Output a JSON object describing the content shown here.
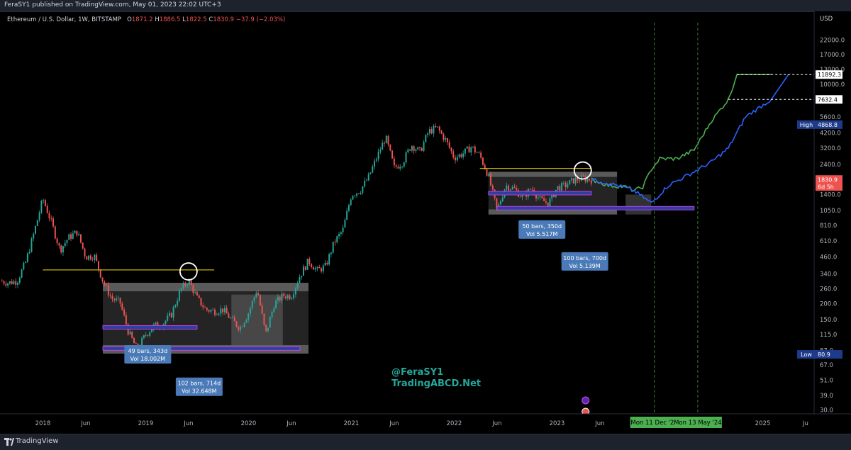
{
  "header": {
    "publish_line": "FeraSY1 published on TradingView.com, May 01, 2023 22:02 UTC+3"
  },
  "legend": {
    "symbol": "Ethereum / U.S. Dollar, 1W, BITSTAMP",
    "o_label": "O",
    "o_value": "1871.2",
    "h_label": "H",
    "h_value": "1886.5",
    "l_label": "L",
    "l_value": "1822.5",
    "c_label": "C",
    "c_value": "1830.9",
    "change": "−37.9 (−2.03%)"
  },
  "price_scale": {
    "currency": "USD"
  },
  "watermark": {
    "line1": "@FeraSY1",
    "line2": "TradingABCD.Net"
  },
  "footer": {
    "brand": "TradingView"
  },
  "colors": {
    "up": "#26a69a",
    "down": "#ef5350",
    "projection_green": "#4caf50",
    "projection_blue": "#2962ff",
    "resistance": "#c8b400",
    "box": "#808080",
    "date_marker": "#2e7d32",
    "annotation_bg": "#4a7ab8"
  },
  "chart_data": {
    "type": "candlestick",
    "symbol": "ETHUSD",
    "interval": "1W",
    "y_scale": "log",
    "ylim": [
      28,
      30000
    ],
    "x_range": [
      "2017-08",
      "2025-07"
    ],
    "y_ticks": [
      "22000.0",
      "17000.0",
      "13000.0",
      "10000.0",
      "5600.0",
      "4200.0",
      "3200.0",
      "2400.0",
      "1400.0",
      "1050.0",
      "810.0",
      "610.0",
      "460.0",
      "340.0",
      "260.0",
      "200.0",
      "150.0",
      "115.0",
      "87.0",
      "67.0",
      "51.0",
      "39.0",
      "30.0"
    ],
    "x_ticks": [
      {
        "label": "2018",
        "date": "2018-01"
      },
      {
        "label": "Jun",
        "date": "2018-06"
      },
      {
        "label": "2019",
        "date": "2019-01"
      },
      {
        "label": "Jun",
        "date": "2019-06"
      },
      {
        "label": "2020",
        "date": "2020-01"
      },
      {
        "label": "Jun",
        "date": "2020-06"
      },
      {
        "label": "2021",
        "date": "2021-01"
      },
      {
        "label": "Jun",
        "date": "2021-06"
      },
      {
        "label": "2022",
        "date": "2022-01"
      },
      {
        "label": "Jun",
        "date": "2022-06"
      },
      {
        "label": "2023",
        "date": "2023-01"
      },
      {
        "label": "Jun",
        "date": "2023-06"
      },
      {
        "label": "2025",
        "date": "2025-01"
      },
      {
        "label": "Ju",
        "date": "2025-06"
      }
    ],
    "price_path": [
      [
        "2017-08",
        300
      ],
      [
        "2017-09",
        290
      ],
      [
        "2017-10",
        300
      ],
      [
        "2017-11",
        420
      ],
      [
        "2017-12",
        720
      ],
      [
        "2018-01",
        1300
      ],
      [
        "2018-02",
        850
      ],
      [
        "2018-03",
        520
      ],
      [
        "2018-04",
        650
      ],
      [
        "2018-05",
        720
      ],
      [
        "2018-06",
        460
      ],
      [
        "2018-07",
        470
      ],
      [
        "2018-08",
        300
      ],
      [
        "2018-09",
        220
      ],
      [
        "2018-10",
        205
      ],
      [
        "2018-11",
        120
      ],
      [
        "2018-12",
        88
      ],
      [
        "2019-01",
        115
      ],
      [
        "2019-02",
        135
      ],
      [
        "2019-03",
        140
      ],
      [
        "2019-04",
        165
      ],
      [
        "2019-05",
        250
      ],
      [
        "2019-06",
        305
      ],
      [
        "2019-07",
        220
      ],
      [
        "2019-08",
        180
      ],
      [
        "2019-09",
        175
      ],
      [
        "2019-10",
        180
      ],
      [
        "2019-11",
        150
      ],
      [
        "2019-12",
        130
      ],
      [
        "2020-01",
        170
      ],
      [
        "2020-02",
        260
      ],
      [
        "2020-03",
        115
      ],
      [
        "2020-04",
        200
      ],
      [
        "2020-05",
        230
      ],
      [
        "2020-06",
        230
      ],
      [
        "2020-07",
        330
      ],
      [
        "2020-08",
        430
      ],
      [
        "2020-09",
        360
      ],
      [
        "2020-10",
        390
      ],
      [
        "2020-11",
        600
      ],
      [
        "2020-12",
        740
      ],
      [
        "2021-01",
        1400
      ],
      [
        "2021-02",
        1500
      ],
      [
        "2021-03",
        1900
      ],
      [
        "2021-04",
        2750
      ],
      [
        "2021-05",
        3900
      ],
      [
        "2021-06",
        2250
      ],
      [
        "2021-07",
        2500
      ],
      [
        "2021-08",
        3400
      ],
      [
        "2021-09",
        3000
      ],
      [
        "2021-10",
        4300
      ],
      [
        "2021-11",
        4600
      ],
      [
        "2021-12",
        3700
      ],
      [
        "2022-01",
        2700
      ],
      [
        "2022-02",
        2900
      ],
      [
        "2022-03",
        3280
      ],
      [
        "2022-04",
        2800
      ],
      [
        "2022-05",
        1950
      ],
      [
        "2022-06",
        1050
      ],
      [
        "2022-07",
        1650
      ],
      [
        "2022-08",
        1550
      ],
      [
        "2022-09",
        1330
      ],
      [
        "2022-10",
        1570
      ],
      [
        "2022-11",
        1280
      ],
      [
        "2022-12",
        1200
      ],
      [
        "2023-01",
        1580
      ],
      [
        "2023-02",
        1650
      ],
      [
        "2023-03",
        1820
      ],
      [
        "2023-04",
        1870
      ],
      [
        "2023-05",
        1830
      ]
    ],
    "projections": [
      {
        "name": "green",
        "points": [
          [
            "2023-05",
            1830
          ],
          [
            "2023-07",
            1650
          ],
          [
            "2023-09",
            1600
          ],
          [
            "2023-10",
            1500
          ],
          [
            "2023-11",
            1600
          ],
          [
            "2023-12",
            2200
          ],
          [
            "2024-01",
            2650
          ],
          [
            "2024-03",
            2650
          ],
          [
            "2024-05",
            3100
          ],
          [
            "2024-07",
            5200
          ],
          [
            "2024-09",
            7632.4
          ],
          [
            "2024-10",
            11892.3
          ],
          [
            "2025-02",
            11892.3
          ]
        ]
      },
      {
        "name": "blue",
        "points": [
          [
            "2023-05",
            1830
          ],
          [
            "2023-08",
            1650
          ],
          [
            "2023-10",
            1500
          ],
          [
            "2023-12",
            1200
          ],
          [
            "2024-02",
            1650
          ],
          [
            "2024-05",
            2100
          ],
          [
            "2024-07",
            2500
          ],
          [
            "2024-09",
            3200
          ],
          [
            "2024-11",
            5600
          ],
          [
            "2025-02",
            7632.4
          ],
          [
            "2025-04",
            11892.3
          ]
        ]
      }
    ],
    "resistance_lines": [
      {
        "from": "2018-01",
        "to": "2019-09",
        "price": 365
      },
      {
        "from": "2022-04",
        "to": "2023-05",
        "price": 2230
      }
    ],
    "range_boxes": [
      {
        "from": "2018-08",
        "to": "2020-08",
        "top": 290,
        "bottom": 82
      },
      {
        "from": "2019-11",
        "to": "2020-05",
        "top": 235,
        "bottom": 95
      },
      {
        "from": "2022-05",
        "to": "2023-08",
        "top": 2100,
        "bottom": 980
      },
      {
        "from": "2023-09",
        "to": "2023-12",
        "top": 1400,
        "bottom": 980
      }
    ],
    "circles": [
      {
        "date": "2019-06",
        "price": 355
      },
      {
        "date": "2023-04",
        "price": 2150
      }
    ],
    "date_markers": [
      "Mon 11 Dec '23",
      "Mon 13 May '24"
    ],
    "price_labels": [
      {
        "value": "11892.3"
      },
      {
        "value": "7632.4"
      },
      {
        "label": "High",
        "value": "4868.8"
      },
      {
        "value": "1830.9",
        "sub": "6d 5h"
      },
      {
        "label": "Low",
        "value": "80.9"
      }
    ],
    "annotations": [
      {
        "line1": "49 bars, 343d",
        "line2": "Vol 18.002M"
      },
      {
        "line1": "102 bars, 714d",
        "line2": "Vol 32.648M"
      },
      {
        "line1": "50 bars, 350d",
        "line2": "Vol 5.517M"
      },
      {
        "line1": "100 bars, 700d",
        "line2": "Vol 5.139M"
      }
    ]
  }
}
